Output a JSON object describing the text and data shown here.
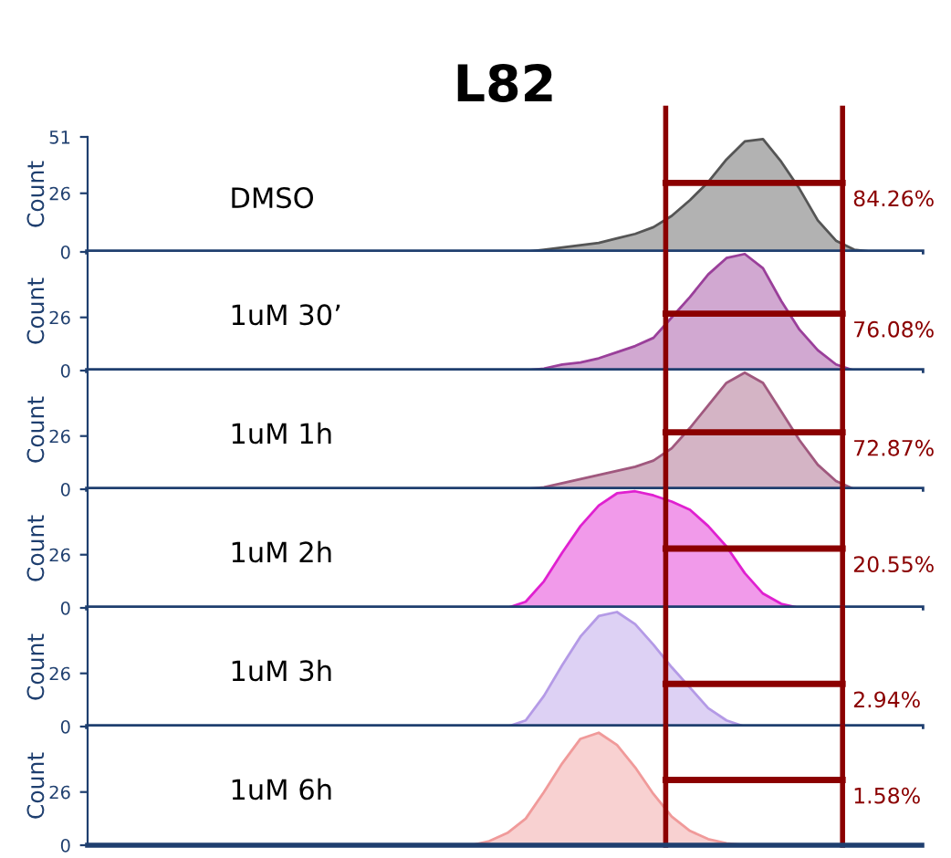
{
  "chart_data": [
    {
      "type": "area",
      "title": "L82",
      "ylabel": "Count",
      "annotations": [
        "DMSO",
        "84.26%"
      ],
      "ylim": [
        0,
        51
      ],
      "yticks": [
        0,
        26,
        51
      ],
      "tick_labels": "y",
      "grid": false,
      "legend": false,
      "categories": [
        null,
        null,
        null,
        null,
        null,
        null,
        null,
        null,
        null,
        null,
        null,
        null,
        null,
        null,
        null,
        null,
        null,
        null,
        null,
        null,
        null,
        null,
        null,
        null,
        null,
        null,
        null,
        null,
        null,
        null,
        null,
        null,
        null,
        null,
        null,
        null,
        null,
        null,
        null,
        null,
        null,
        null,
        null,
        null,
        null,
        null
      ],
      "series": [
        {
          "color": "#555555",
          "values": [
            0,
            0,
            0,
            0,
            0,
            0,
            0,
            0,
            0,
            0,
            0,
            0,
            0,
            0,
            0,
            0,
            0,
            0,
            0,
            0,
            0,
            0,
            0,
            0,
            0,
            1,
            2,
            3,
            4,
            6,
            8,
            11,
            16,
            23,
            31,
            41,
            49,
            50,
            40,
            28,
            14,
            5,
            1,
            0,
            0,
            0
          ]
        }
      ]
    },
    {
      "type": "area",
      "ylabel": "Count",
      "annotations": [
        "1uM 30’",
        "76.08%"
      ],
      "ylim": [
        0,
        58
      ],
      "yticks": [
        0,
        26
      ],
      "tick_labels": "y",
      "grid": false,
      "legend": false,
      "categories": [
        null,
        null,
        null,
        null,
        null,
        null,
        null,
        null,
        null,
        null,
        null,
        null,
        null,
        null,
        null,
        null,
        null,
        null,
        null,
        null,
        null,
        null,
        null,
        null,
        null,
        null,
        null,
        null,
        null,
        null,
        null,
        null,
        null,
        null,
        null,
        null,
        null,
        null,
        null,
        null,
        null,
        null,
        null,
        null,
        null,
        null
      ],
      "series": [
        {
          "color": "#9a3f9a",
          "values": [
            0,
            0,
            0,
            0,
            0,
            0,
            0,
            0,
            0,
            0,
            0,
            0,
            0,
            0,
            0,
            0,
            0,
            0,
            0,
            0,
            0,
            0,
            0,
            0,
            0,
            1,
            3,
            4,
            6,
            9,
            12,
            16,
            26,
            36,
            47,
            55,
            57,
            50,
            34,
            20,
            10,
            3,
            0,
            0,
            0,
            0
          ]
        }
      ]
    },
    {
      "type": "area",
      "ylabel": "Count",
      "annotations": [
        "1uM 1h",
        "72.87%"
      ],
      "ylim": [
        0,
        58
      ],
      "yticks": [
        0,
        26
      ],
      "tick_labels": "y",
      "grid": false,
      "legend": false,
      "categories": [
        null,
        null,
        null,
        null,
        null,
        null,
        null,
        null,
        null,
        null,
        null,
        null,
        null,
        null,
        null,
        null,
        null,
        null,
        null,
        null,
        null,
        null,
        null,
        null,
        null,
        null,
        null,
        null,
        null,
        null,
        null,
        null,
        null,
        null,
        null,
        null,
        null,
        null,
        null,
        null,
        null,
        null,
        null,
        null,
        null,
        null
      ],
      "series": [
        {
          "color": "#a0587e",
          "values": [
            0,
            0,
            0,
            0,
            0,
            0,
            0,
            0,
            0,
            0,
            0,
            0,
            0,
            0,
            0,
            0,
            0,
            0,
            0,
            0,
            0,
            0,
            0,
            0,
            0,
            1,
            3,
            5,
            7,
            9,
            11,
            14,
            20,
            30,
            41,
            52,
            57,
            52,
            38,
            24,
            12,
            4,
            0,
            0,
            0,
            0
          ]
        }
      ]
    },
    {
      "type": "area",
      "ylabel": "Count",
      "annotations": [
        "1uM 2h",
        "20.55%"
      ],
      "ylim": [
        0,
        58
      ],
      "yticks": [
        0,
        26
      ],
      "tick_labels": "y",
      "grid": false,
      "legend": false,
      "categories": [
        null,
        null,
        null,
        null,
        null,
        null,
        null,
        null,
        null,
        null,
        null,
        null,
        null,
        null,
        null,
        null,
        null,
        null,
        null,
        null,
        null,
        null,
        null,
        null,
        null,
        null,
        null,
        null,
        null,
        null,
        null,
        null,
        null,
        null,
        null,
        null,
        null,
        null,
        null,
        null,
        null,
        null,
        null,
        null,
        null,
        null
      ],
      "series": [
        {
          "color": "#e020d0",
          "values": [
            0,
            0,
            0,
            0,
            0,
            0,
            0,
            0,
            0,
            0,
            0,
            0,
            0,
            0,
            0,
            0,
            0,
            0,
            0,
            0,
            0,
            0,
            0,
            0,
            3,
            13,
            27,
            40,
            50,
            56,
            57,
            55,
            52,
            48,
            40,
            30,
            17,
            7,
            2,
            0,
            0,
            0,
            0,
            0,
            0,
            0
          ]
        }
      ]
    },
    {
      "type": "area",
      "ylabel": "Count",
      "annotations": [
        "1uM 3h",
        "2.94%"
      ],
      "ylim": [
        0,
        58
      ],
      "yticks": [
        0,
        26
      ],
      "tick_labels": "y",
      "grid": false,
      "legend": false,
      "categories": [
        null,
        null,
        null,
        null,
        null,
        null,
        null,
        null,
        null,
        null,
        null,
        null,
        null,
        null,
        null,
        null,
        null,
        null,
        null,
        null,
        null,
        null,
        null,
        null,
        null,
        null,
        null,
        null,
        null,
        null,
        null,
        null,
        null,
        null,
        null,
        null,
        null,
        null,
        null,
        null,
        null,
        null,
        null,
        null,
        null,
        null
      ],
      "series": [
        {
          "color": "#b49ae6",
          "values": [
            0,
            0,
            0,
            0,
            0,
            0,
            0,
            0,
            0,
            0,
            0,
            0,
            0,
            0,
            0,
            0,
            0,
            0,
            0,
            0,
            0,
            0,
            0,
            0,
            3,
            15,
            30,
            44,
            54,
            56,
            50,
            40,
            29,
            19,
            9,
            3,
            0,
            0,
            0,
            0,
            0,
            0,
            0,
            0,
            0,
            0
          ]
        }
      ]
    },
    {
      "type": "area",
      "ylabel": "Count",
      "annotations": [
        "1uM 6h",
        "1.58%"
      ],
      "ylim": [
        0,
        58
      ],
      "yticks": [
        0,
        26
      ],
      "tick_labels": "y",
      "grid": false,
      "legend": false,
      "categories": [
        null,
        null,
        null,
        null,
        null,
        null,
        null,
        null,
        null,
        null,
        null,
        null,
        null,
        null,
        null,
        null,
        null,
        null,
        null,
        null,
        null,
        null,
        null,
        null,
        null,
        null,
        null,
        null,
        null,
        null,
        null,
        null,
        null,
        null,
        null,
        null,
        null,
        null,
        null,
        null,
        null,
        null,
        null,
        null,
        null,
        null
      ],
      "series": [
        {
          "color": "#f09a9a",
          "values": [
            0,
            0,
            0,
            0,
            0,
            0,
            0,
            0,
            0,
            0,
            0,
            0,
            0,
            0,
            0,
            0,
            0,
            0,
            0,
            0,
            0,
            0,
            2,
            6,
            13,
            26,
            40,
            52,
            55,
            49,
            38,
            25,
            14,
            7,
            3,
            1,
            0,
            0,
            0,
            0,
            0,
            0,
            0,
            0,
            0,
            0
          ]
        }
      ]
    }
  ]
}
